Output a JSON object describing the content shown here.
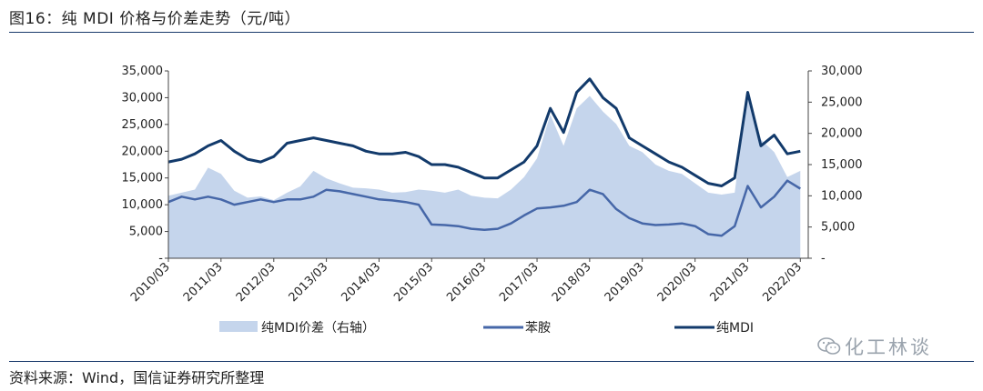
{
  "title": "图16：纯 MDI 价格与价差走势（元/吨）",
  "source": "资料来源：Wind，国信证券研究所整理",
  "watermark": "化工林谈",
  "colors": {
    "spread": "#c5d5ec",
    "aniline": "#4667a8",
    "mdi": "#123a6b",
    "axis": "#444444"
  },
  "chart_data": {
    "type": "line",
    "x_ticks": [
      "2010/03",
      "2011/03",
      "2012/03",
      "2013/03",
      "2014/03",
      "2015/03",
      "2016/03",
      "2017/03",
      "2018/03",
      "2019/03",
      "2020/03",
      "2021/03",
      "2022/03"
    ],
    "y_left_ticks": [
      "35,000",
      "30,000",
      "25,000",
      "20,000",
      "15,000",
      "10,000",
      "5,000",
      "-"
    ],
    "y_right_ticks": [
      "30,000",
      "25,000",
      "20,000",
      "15,000",
      "10,000",
      "5,000",
      "-"
    ],
    "y_left_range": [
      0,
      35000
    ],
    "y_right_range": [
      0,
      30000
    ],
    "legend_position": "bottom",
    "series": [
      {
        "name": "纯MDI价差（右轴）",
        "type": "area",
        "axis": "right",
        "x": [
          "2010-03",
          "2010-06",
          "2010-09",
          "2010-12",
          "2011-03",
          "2011-06",
          "2011-09",
          "2011-12",
          "2012-03",
          "2012-06",
          "2012-09",
          "2012-12",
          "2013-03",
          "2013-06",
          "2013-09",
          "2013-12",
          "2014-03",
          "2014-06",
          "2014-09",
          "2014-12",
          "2015-03",
          "2015-06",
          "2015-09",
          "2015-12",
          "2016-03",
          "2016-06",
          "2016-09",
          "2016-12",
          "2017-03",
          "2017-06",
          "2017-09",
          "2017-12",
          "2018-03",
          "2018-06",
          "2018-09",
          "2018-12",
          "2019-03",
          "2019-06",
          "2019-09",
          "2019-12",
          "2020-03",
          "2020-06",
          "2020-09",
          "2020-12",
          "2021-03",
          "2021-06",
          "2021-09",
          "2021-12",
          "2022-03"
        ],
        "values": [
          10000,
          10500,
          11000,
          14500,
          13500,
          10800,
          9700,
          9900,
          9300,
          10500,
          11500,
          14000,
          12800,
          12000,
          11300,
          11200,
          11000,
          10500,
          10600,
          11000,
          10800,
          10500,
          11000,
          10000,
          9700,
          9600,
          11000,
          13000,
          16000,
          23000,
          18000,
          24000,
          26000,
          23500,
          21500,
          18000,
          17000,
          15000,
          14000,
          13500,
          12000,
          10500,
          10200,
          10500,
          26500,
          19000,
          17000,
          13000,
          14000
        ]
      },
      {
        "name": "苯胺",
        "type": "line",
        "axis": "left",
        "x": [
          "2010-03",
          "2010-06",
          "2010-09",
          "2010-12",
          "2011-03",
          "2011-06",
          "2011-09",
          "2011-12",
          "2012-03",
          "2012-06",
          "2012-09",
          "2012-12",
          "2013-03",
          "2013-06",
          "2013-09",
          "2013-12",
          "2014-03",
          "2014-06",
          "2014-09",
          "2014-12",
          "2015-03",
          "2015-06",
          "2015-09",
          "2015-12",
          "2016-03",
          "2016-06",
          "2016-09",
          "2016-12",
          "2017-03",
          "2017-06",
          "2017-09",
          "2017-12",
          "2018-03",
          "2018-06",
          "2018-09",
          "2018-12",
          "2019-03",
          "2019-06",
          "2019-09",
          "2019-12",
          "2020-03",
          "2020-06",
          "2020-09",
          "2020-12",
          "2021-03",
          "2021-06",
          "2021-09",
          "2021-12",
          "2022-03"
        ],
        "values": [
          10500,
          11500,
          11000,
          11500,
          11000,
          10000,
          10500,
          11000,
          10500,
          11000,
          11000,
          11500,
          12800,
          12500,
          12000,
          11500,
          11000,
          10800,
          10500,
          10000,
          6300,
          6200,
          6000,
          5500,
          5300,
          5500,
          6500,
          8000,
          9300,
          9500,
          9800,
          10500,
          12800,
          12000,
          9200,
          7500,
          6500,
          6200,
          6300,
          6500,
          6000,
          4500,
          4200,
          6000,
          13500,
          9500,
          11500,
          14500,
          13000
        ]
      },
      {
        "name": "纯MDI",
        "type": "line",
        "axis": "left",
        "x": [
          "2010-03",
          "2010-06",
          "2010-09",
          "2010-12",
          "2011-03",
          "2011-06",
          "2011-09",
          "2011-12",
          "2012-03",
          "2012-06",
          "2012-09",
          "2012-12",
          "2013-03",
          "2013-06",
          "2013-09",
          "2013-12",
          "2014-03",
          "2014-06",
          "2014-09",
          "2014-12",
          "2015-03",
          "2015-06",
          "2015-09",
          "2015-12",
          "2016-03",
          "2016-06",
          "2016-09",
          "2016-12",
          "2017-03",
          "2017-06",
          "2017-09",
          "2017-12",
          "2018-03",
          "2018-06",
          "2018-09",
          "2018-12",
          "2019-03",
          "2019-06",
          "2019-09",
          "2019-12",
          "2020-03",
          "2020-06",
          "2020-09",
          "2020-12",
          "2021-03",
          "2021-06",
          "2021-09",
          "2021-12",
          "2022-03"
        ],
        "values": [
          18000,
          18500,
          19500,
          21000,
          22000,
          20000,
          18500,
          18000,
          19000,
          21500,
          22000,
          22500,
          22000,
          21500,
          21000,
          20000,
          19500,
          19500,
          19800,
          19000,
          17500,
          17500,
          17000,
          16000,
          15000,
          15000,
          16500,
          18000,
          21000,
          28000,
          23500,
          31000,
          33500,
          30000,
          28000,
          22500,
          21000,
          19500,
          18000,
          17000,
          15500,
          14000,
          13500,
          15000,
          31000,
          21000,
          23000,
          19500,
          20000
        ]
      }
    ]
  }
}
